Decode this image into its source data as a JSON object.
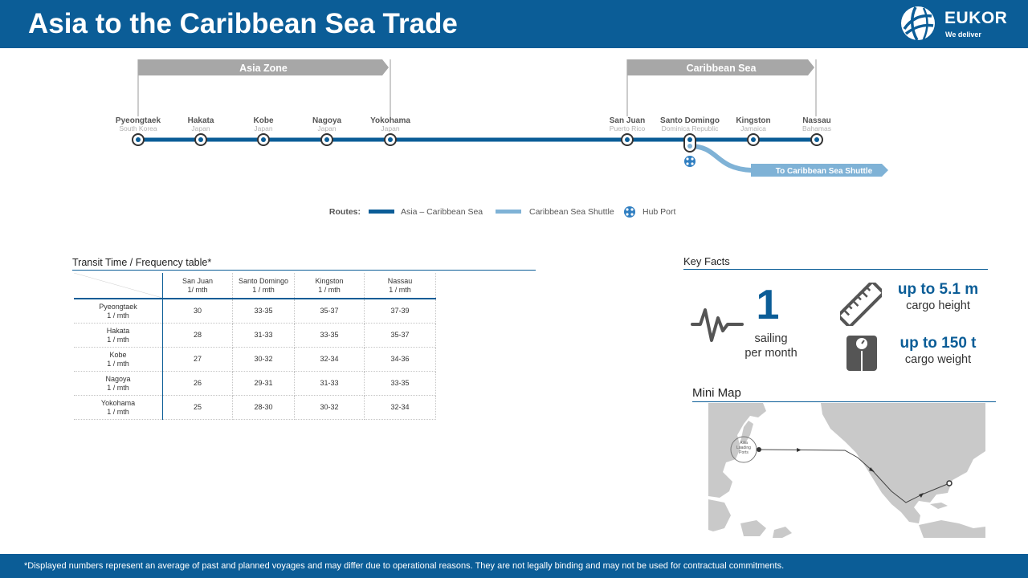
{
  "header": {
    "title": "Asia to the Caribbean Sea Trade",
    "logo_text": "EUKOR",
    "logo_tagline": "We deliver",
    "background": "#0b5d97"
  },
  "route_map": {
    "zones": [
      {
        "label": "Asia Zone"
      },
      {
        "label": "Caribbean Sea"
      }
    ],
    "ports": [
      {
        "name": "Pyeongtaek",
        "country": "South Korea"
      },
      {
        "name": "Hakata",
        "country": "Japan"
      },
      {
        "name": "Kobe",
        "country": "Japan"
      },
      {
        "name": "Nagoya",
        "country": "Japan"
      },
      {
        "name": "Yokohama",
        "country": "Japan"
      },
      {
        "name": "San Juan",
        "country": "Puerto Rico"
      },
      {
        "name": "Santo Domingo",
        "country": "Dominica Republic"
      },
      {
        "name": "Kingston",
        "country": "Jamaica"
      },
      {
        "name": "Nassau",
        "country": "Bahamas"
      }
    ],
    "shuttle_label": "To Caribbean Sea Shuttle",
    "legend": {
      "title": "Routes:",
      "items": [
        {
          "label": "Asia – Caribbean Sea",
          "color": "#0b5d97"
        },
        {
          "label": "Caribbean Sea Shuttle",
          "color": "#7fb2d6"
        },
        {
          "label": "Hub Port",
          "color": "#2f7ec1",
          "icon": "hub-port-icon"
        }
      ]
    }
  },
  "transit_table": {
    "title": "Transit Time / Frequency table*",
    "columns": [
      {
        "port": "San Juan",
        "freq": "1/ mth"
      },
      {
        "port": "Santo Domingo",
        "freq": "1 / mth"
      },
      {
        "port": "Kingston",
        "freq": "1 / mth"
      },
      {
        "port": "Nassau",
        "freq": "1 / mth"
      }
    ],
    "rows": [
      {
        "port": "Pyeongtaek",
        "freq": "1 / mth",
        "values": [
          "30",
          "33-35",
          "35-37",
          "37-39"
        ]
      },
      {
        "port": "Hakata",
        "freq": "1 / mth",
        "values": [
          "28",
          "31-33",
          "33-35",
          "35-37"
        ]
      },
      {
        "port": "Kobe",
        "freq": "1 / mth",
        "values": [
          "27",
          "30-32",
          "32-34",
          "34-36"
        ]
      },
      {
        "port": "Nagoya",
        "freq": "1 / mth",
        "values": [
          "26",
          "29-31",
          "31-33",
          "33-35"
        ]
      },
      {
        "port": "Yokohama",
        "freq": "1 / mth",
        "values": [
          "25",
          "28-30",
          "30-32",
          "32-34"
        ]
      }
    ]
  },
  "key_facts": {
    "title": "Key Facts",
    "sailing_number": "1",
    "sailing_label": "sailing\nper month",
    "height_value": "up to 5.1 m",
    "height_label": "cargo height",
    "weight_value": "up to 150 t",
    "weight_label": "cargo weight",
    "icons": [
      "heartbeat-icon",
      "ruler-icon",
      "weight-scale-icon"
    ]
  },
  "mini_map": {
    "title": "Mini Map",
    "origin_label": "Asia\nLoading\nPorts"
  },
  "footer": {
    "note": "*Displayed numbers represent  an average of past and planned voyages and may differ due to operational reasons. They are not legally binding and may not be used for contractual commitments."
  }
}
